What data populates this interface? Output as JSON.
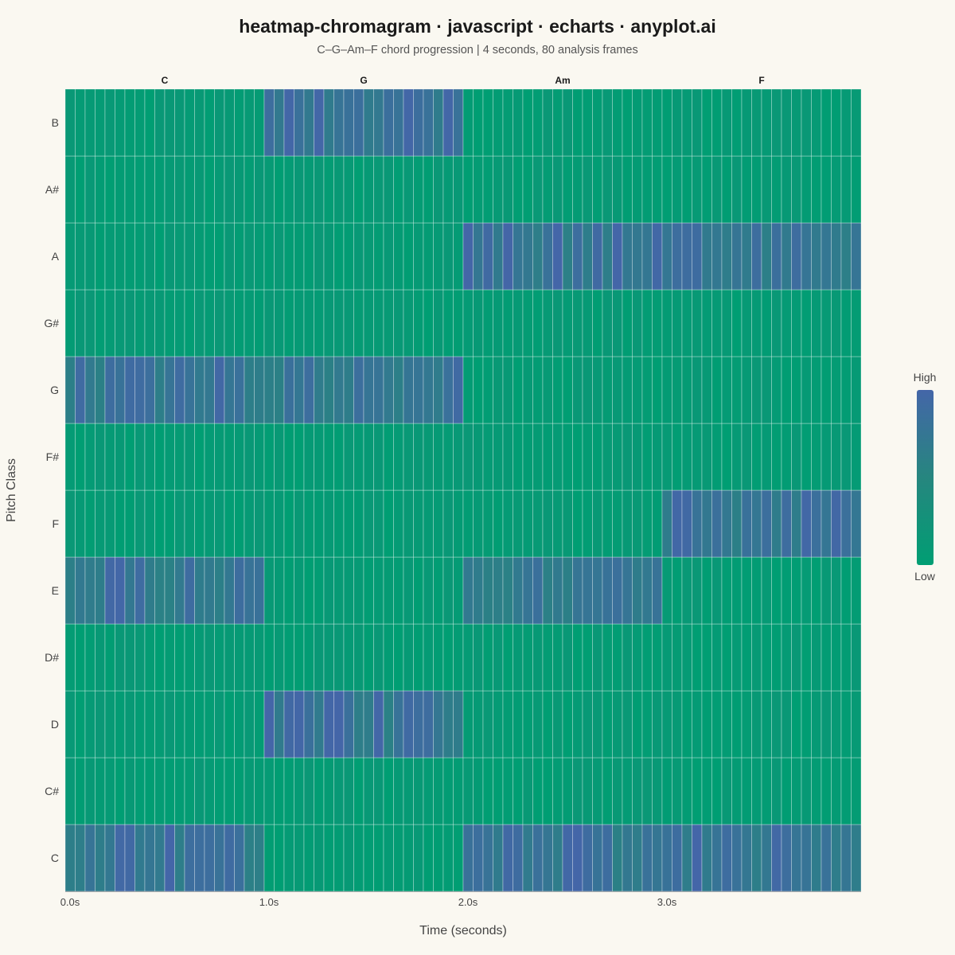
{
  "title": "heatmap-chromagram · javascript · echarts · anyplot.ai",
  "subtitle": "C–G–Am–F chord progression  |  4 seconds, 80 analysis frames",
  "chart_data": {
    "type": "heatmap",
    "xlabel": "Time (seconds)",
    "ylabel": "Pitch Class",
    "x_tick_labels": [
      "0.0s",
      "1.0s",
      "2.0s",
      "3.0s"
    ],
    "x_range": [
      0,
      4
    ],
    "frames": 80,
    "pitch_classes": [
      "C",
      "C#",
      "D",
      "D#",
      "E",
      "F",
      "F#",
      "G",
      "G#",
      "A",
      "A#",
      "B"
    ],
    "chords": [
      {
        "label": "C",
        "start_frame": 0,
        "end_frame": 20,
        "active": [
          "C",
          "E",
          "G"
        ]
      },
      {
        "label": "G",
        "start_frame": 20,
        "end_frame": 40,
        "active": [
          "G",
          "B",
          "D"
        ]
      },
      {
        "label": "Am",
        "start_frame": 40,
        "end_frame": 60,
        "active": [
          "A",
          "C",
          "E"
        ]
      },
      {
        "label": "F",
        "start_frame": 60,
        "end_frame": 80,
        "active": [
          "F",
          "A",
          "C"
        ]
      }
    ],
    "value_range": [
      0,
      1
    ],
    "active_level_approx": 0.8,
    "inactive_level_approx": 0.05,
    "colormap": {
      "low": "#009E73",
      "mid": "#26867F",
      "high": "#4466A8"
    },
    "legend": {
      "high_label": "High",
      "low_label": "Low",
      "position": "right"
    }
  }
}
